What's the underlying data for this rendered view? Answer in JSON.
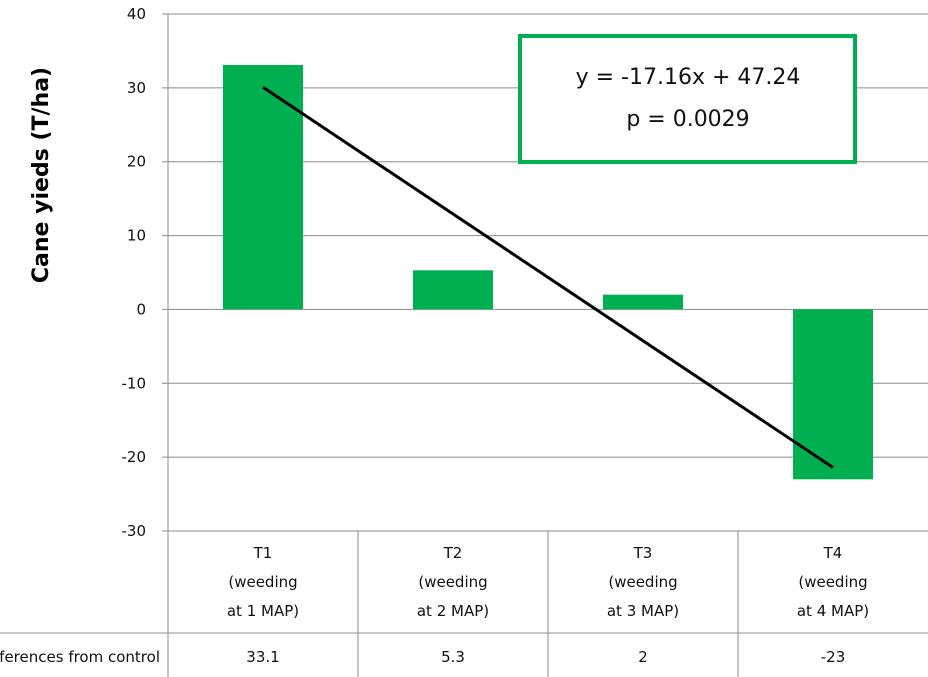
{
  "chart_data": {
    "type": "bar",
    "title": "",
    "ylabel": "Cane yieds (T/ha)",
    "xlabel": "",
    "ylim": [
      -30,
      40
    ],
    "yticks": [
      -30,
      -20,
      -10,
      0,
      10,
      20,
      30,
      40
    ],
    "grid": true,
    "categories": [
      [
        "T1",
        "(weeding",
        "at 1 MAP)"
      ],
      [
        "T2",
        "(weeding",
        "at 2 MAP)"
      ],
      [
        "T3",
        "(weeding",
        "at 3 MAP)"
      ],
      [
        "T4",
        "(weeding",
        "at 4 MAP)"
      ]
    ],
    "series": [
      {
        "name": "Differences from control",
        "values": [
          33.1,
          5.3,
          2,
          -23
        ],
        "color": "#00b050"
      }
    ],
    "table_row_label": "Differences from control",
    "table_values": [
      "33.1",
      "5.3",
      "2",
      "-23"
    ],
    "trendline": {
      "slope": -17.16,
      "intercept": 47.24,
      "color": "#000000"
    },
    "annotation": {
      "lines": [
        "y = -17.16x + 47.24",
        "p = 0.0029"
      ],
      "border_color": "#00b050"
    }
  }
}
